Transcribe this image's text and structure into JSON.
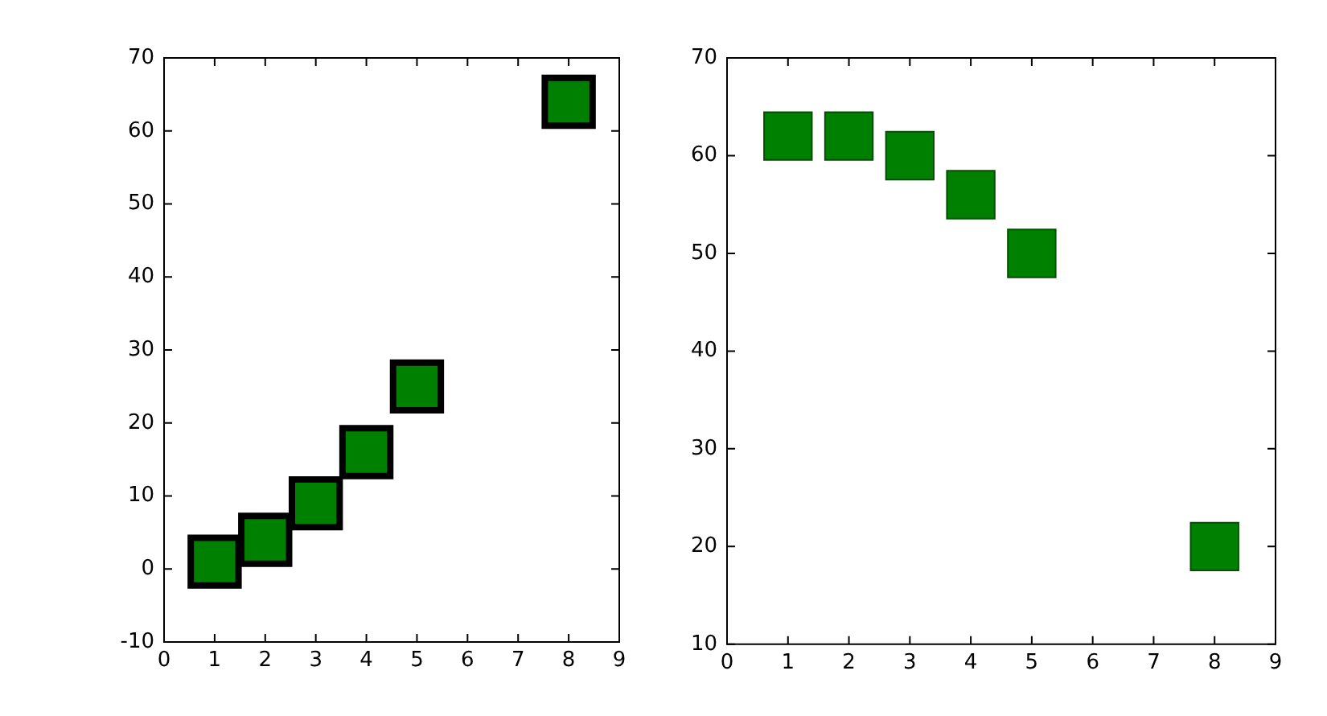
{
  "chart_data": [
    {
      "type": "scatter",
      "marker": "square",
      "xlim": [
        0,
        9
      ],
      "xticks": [
        0,
        1,
        2,
        3,
        4,
        5,
        6,
        7,
        8,
        9
      ],
      "ylim": [
        -10,
        70
      ],
      "yticks": [
        -10,
        0,
        10,
        20,
        30,
        40,
        50,
        60,
        70
      ],
      "series": [
        {
          "color": "#008000",
          "x": [
            1,
            2,
            3,
            4,
            5,
            8
          ],
          "values": [
            1,
            4,
            9,
            16,
            25,
            64
          ]
        }
      ]
    },
    {
      "type": "scatter",
      "marker": "square",
      "xlim": [
        0,
        9
      ],
      "xticks": [
        0,
        1,
        2,
        3,
        4,
        5,
        6,
        7,
        8,
        9
      ],
      "ylim": [
        10,
        70
      ],
      "yticks": [
        10,
        20,
        30,
        40,
        50,
        60,
        70
      ],
      "series": [
        {
          "color": "#008000",
          "x": [
            1,
            2,
            3,
            4,
            5,
            8
          ],
          "values": [
            62,
            62,
            60,
            56,
            50,
            20
          ]
        }
      ]
    }
  ]
}
